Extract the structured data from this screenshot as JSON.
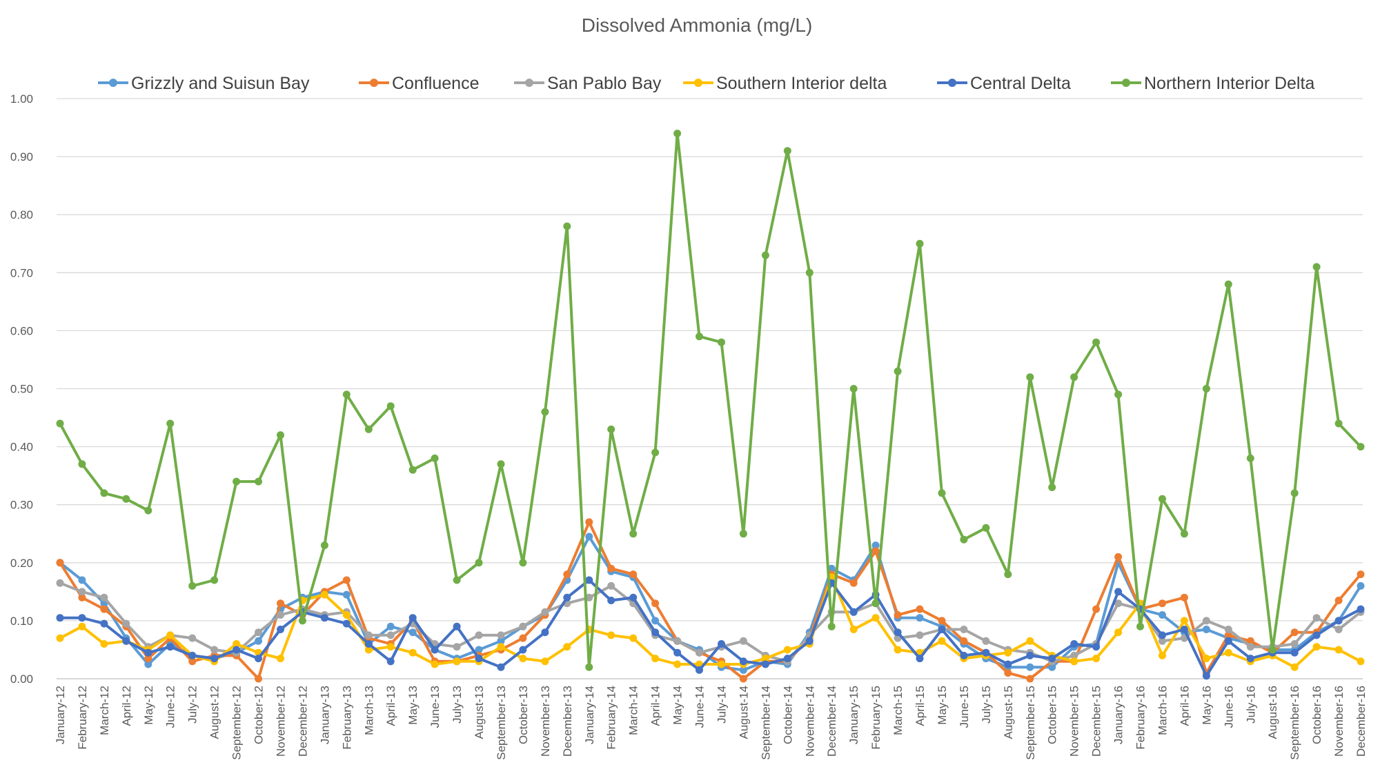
{
  "chart_data": {
    "type": "line",
    "title": "Dissolved Ammonia (mg/L)",
    "xlabel": "",
    "ylabel": "",
    "ylim": [
      0,
      1.0
    ],
    "ytick_labels": [
      "0.00",
      "0.10",
      "0.20",
      "0.30",
      "0.40",
      "0.50",
      "0.60",
      "0.70",
      "0.80",
      "0.90",
      "1.00"
    ],
    "grid": true,
    "legend_position": "top",
    "categories": [
      "January-12",
      "February-12",
      "March-12",
      "April-12",
      "May-12",
      "June-12",
      "July-12",
      "August-12",
      "September-12",
      "October-12",
      "November-12",
      "December-12",
      "January-13",
      "February-13",
      "March-13",
      "April-13",
      "May-13",
      "June-13",
      "July-13",
      "August-13",
      "September-13",
      "October-13",
      "November-13",
      "December-13",
      "January-14",
      "February-14",
      "March-14",
      "April-14",
      "May-14",
      "June-14",
      "July-14",
      "August-14",
      "September-14",
      "October-14",
      "November-14",
      "December-14",
      "January-15",
      "February-15",
      "March-15",
      "April-15",
      "May-15",
      "June-15",
      "July-15",
      "August-15",
      "September-15",
      "October-15",
      "November-15",
      "December-15",
      "January-16",
      "February-16",
      "March-16",
      "April-16",
      "May-16",
      "June-16",
      "July-16",
      "August-16",
      "September-16",
      "October-16",
      "November-16",
      "December-16"
    ],
    "series": [
      {
        "name": "Grizzly and Suisun Bay",
        "color": "#5b9bd5",
        "values": [
          0.2,
          0.17,
          0.13,
          0.07,
          0.025,
          0.06,
          0.04,
          0.035,
          0.045,
          0.065,
          0.12,
          0.14,
          0.15,
          0.145,
          0.06,
          0.09,
          0.08,
          0.05,
          0.035,
          0.05,
          0.065,
          0.09,
          0.11,
          0.17,
          0.245,
          0.185,
          0.175,
          0.1,
          0.065,
          0.05,
          0.02,
          0.015,
          0.03,
          0.025,
          0.08,
          0.19,
          0.17,
          0.23,
          0.105,
          0.105,
          0.09,
          0.06,
          0.035,
          0.02,
          0.02,
          0.02,
          0.055,
          0.06,
          0.2,
          0.12,
          0.11,
          0.08,
          0.085,
          0.07,
          0.06,
          0.05,
          0.05,
          0.08,
          0.1,
          0.16
        ]
      },
      {
        "name": "Confluence",
        "color": "#ed7d31",
        "values": [
          0.2,
          0.14,
          0.12,
          0.09,
          0.035,
          0.07,
          0.03,
          0.04,
          0.04,
          0.0,
          0.13,
          0.11,
          0.15,
          0.17,
          0.07,
          0.06,
          0.1,
          0.03,
          0.03,
          0.04,
          0.05,
          0.07,
          0.11,
          0.18,
          0.27,
          0.19,
          0.18,
          0.13,
          0.065,
          0.045,
          0.03,
          0.0,
          0.03,
          0.03,
          0.07,
          0.18,
          0.165,
          0.22,
          0.11,
          0.12,
          0.1,
          0.065,
          0.045,
          0.01,
          0.0,
          0.03,
          0.03,
          0.12,
          0.21,
          0.12,
          0.13,
          0.14,
          0.01,
          0.075,
          0.065,
          0.045,
          0.08,
          0.08,
          0.135,
          0.18
        ]
      },
      {
        "name": "San Pablo Bay",
        "color": "#a5a5a5",
        "values": [
          0.165,
          0.15,
          0.14,
          0.095,
          0.055,
          0.075,
          0.07,
          0.05,
          0.045,
          0.08,
          0.11,
          0.12,
          0.11,
          0.115,
          0.075,
          0.075,
          0.095,
          0.06,
          0.055,
          0.075,
          0.075,
          0.09,
          0.115,
          0.13,
          0.14,
          0.16,
          0.13,
          0.075,
          0.065,
          0.045,
          0.055,
          0.065,
          0.04,
          0.03,
          0.075,
          0.115,
          0.115,
          0.13,
          0.07,
          0.075,
          0.085,
          0.085,
          0.065,
          0.05,
          0.045,
          0.03,
          0.04,
          0.06,
          0.13,
          0.12,
          0.065,
          0.07,
          0.1,
          0.085,
          0.055,
          0.055,
          0.06,
          0.105,
          0.085,
          0.115
        ]
      },
      {
        "name": "Southern Interior delta",
        "color": "#ffc000",
        "values": [
          0.07,
          0.09,
          0.06,
          0.065,
          0.05,
          0.075,
          0.04,
          0.03,
          0.06,
          0.045,
          0.035,
          0.135,
          0.145,
          0.11,
          0.05,
          0.055,
          0.045,
          0.025,
          0.03,
          0.03,
          0.055,
          0.035,
          0.03,
          0.055,
          0.085,
          0.075,
          0.07,
          0.035,
          0.025,
          0.025,
          0.025,
          0.025,
          0.035,
          0.05,
          0.06,
          0.175,
          0.085,
          0.105,
          0.05,
          0.045,
          0.065,
          0.035,
          0.04,
          0.045,
          0.065,
          0.04,
          0.03,
          0.035,
          0.08,
          0.13,
          0.04,
          0.1,
          0.035,
          0.045,
          0.03,
          0.04,
          0.02,
          0.055,
          0.05,
          0.03
        ]
      },
      {
        "name": "Central Delta",
        "color": "#4472c4",
        "values": [
          0.105,
          0.105,
          0.095,
          0.065,
          0.045,
          0.055,
          0.04,
          0.035,
          0.05,
          0.035,
          0.085,
          0.115,
          0.105,
          0.095,
          0.06,
          0.03,
          0.105,
          0.05,
          0.09,
          0.035,
          0.02,
          0.05,
          0.08,
          0.14,
          0.17,
          0.135,
          0.14,
          0.08,
          0.045,
          0.015,
          0.06,
          0.03,
          0.025,
          0.035,
          0.065,
          0.165,
          0.115,
          0.145,
          0.08,
          0.035,
          0.085,
          0.04,
          0.045,
          0.025,
          0.04,
          0.035,
          0.06,
          0.055,
          0.15,
          0.12,
          0.075,
          0.085,
          0.005,
          0.065,
          0.035,
          0.045,
          0.045,
          0.075,
          0.1,
          0.12
        ]
      },
      {
        "name": "Northern Interior Delta",
        "color": "#70ad47",
        "values": [
          0.44,
          0.37,
          0.32,
          0.31,
          0.29,
          0.44,
          0.16,
          0.17,
          0.34,
          0.34,
          0.42,
          0.1,
          0.23,
          0.49,
          0.43,
          0.47,
          0.36,
          0.38,
          0.17,
          0.2,
          0.37,
          0.2,
          0.46,
          0.78,
          0.02,
          0.43,
          0.25,
          0.39,
          0.94,
          0.59,
          0.58,
          0.25,
          0.73,
          0.91,
          0.7,
          0.09,
          0.5,
          0.13,
          0.53,
          0.75,
          0.32,
          0.24,
          0.26,
          0.18,
          0.52,
          0.33,
          0.52,
          0.58,
          0.49,
          0.09,
          0.31,
          0.25,
          0.5,
          0.68,
          0.38,
          0.05,
          0.32,
          0.71,
          0.44,
          0.4
        ]
      }
    ]
  }
}
